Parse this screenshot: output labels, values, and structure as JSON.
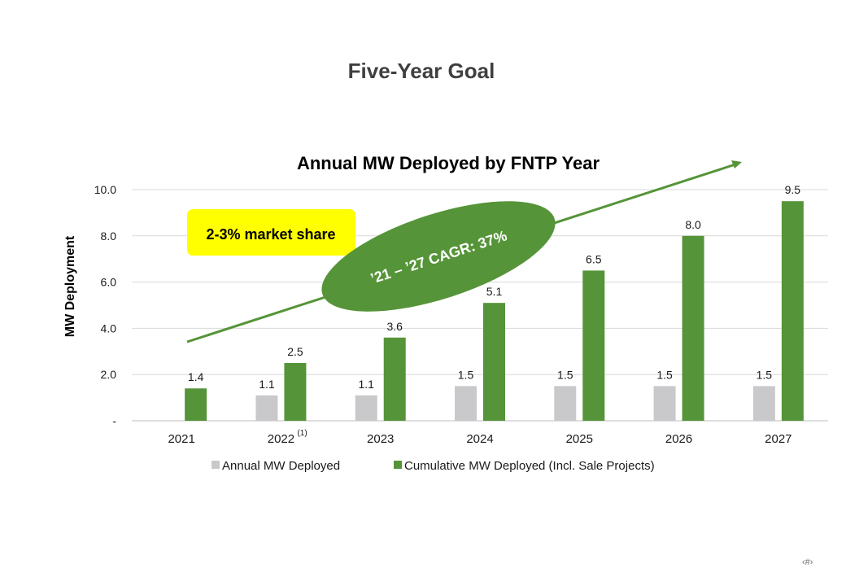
{
  "page": {
    "title": "Five-Year Goal",
    "slide_number": "‹#›"
  },
  "chart_data": {
    "type": "bar",
    "title": "Annual MW Deployed by FNTP Year",
    "xlabel": "",
    "ylabel": "MW Deployment",
    "ylim": [
      0,
      10
    ],
    "yticks": [
      "-",
      "2.0",
      "4.0",
      "6.0",
      "8.0",
      "10.0"
    ],
    "ytick_values": [
      0,
      2,
      4,
      6,
      8,
      10
    ],
    "grid": true,
    "legend_position": "bottom",
    "categories": [
      "2021",
      "2022",
      "2023",
      "2024",
      "2025",
      "2026",
      "2027"
    ],
    "category_superscripts": [
      "",
      "(1)",
      "",
      "",
      "",
      "",
      ""
    ],
    "series": [
      {
        "name": "Annual MW Deployed",
        "color": "#c9c9cc",
        "values": [
          null,
          1.1,
          1.1,
          1.5,
          1.5,
          1.5,
          1.5
        ],
        "labels": [
          "",
          "1.1",
          "1.1",
          "1.5",
          "1.5",
          "1.5",
          "1.5"
        ]
      },
      {
        "name": "Cumulative MW Deployed (Incl. Sale Projects)",
        "color": "#559438",
        "values": [
          1.4,
          2.5,
          3.6,
          5.1,
          6.5,
          8.0,
          9.5
        ],
        "labels": [
          "1.4",
          "2.5",
          "3.6",
          "5.1",
          "6.5",
          "8.0",
          "9.5"
        ]
      }
    ],
    "annotations": {
      "market_share": "2-3% market share",
      "cagr": "’21 – ’27 CAGR: 37%",
      "market_share_color": "#ffff00",
      "cagr_color": "#559438",
      "trend_arrow_color": "#559438"
    }
  }
}
